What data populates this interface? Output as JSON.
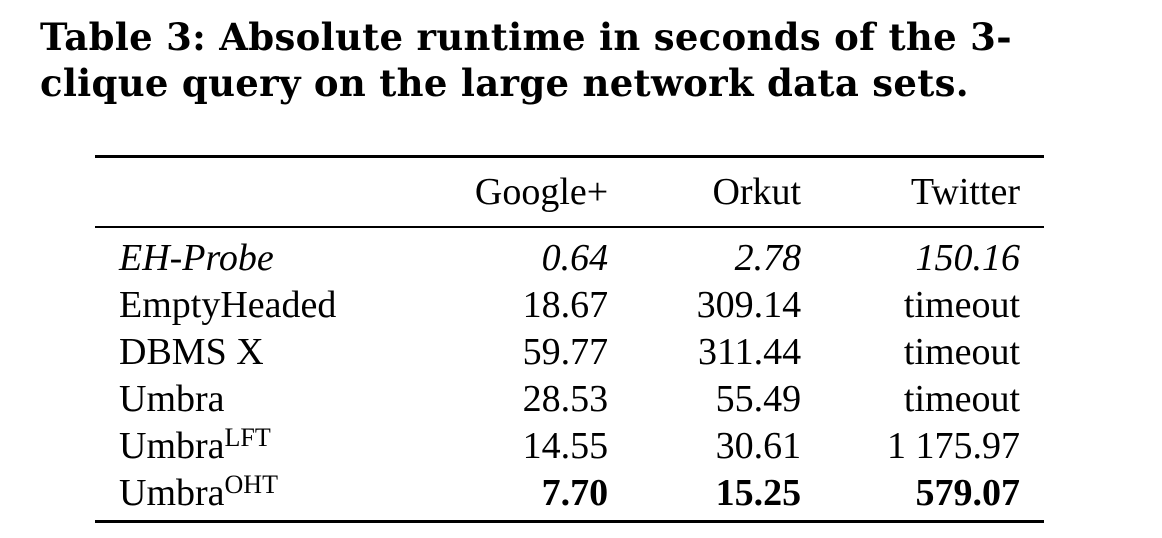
{
  "caption": "Table 3: Absolute runtime in seconds of the 3-clique query on the large network data sets.",
  "table": {
    "columns": [
      "",
      "Google+",
      "Orkut",
      "Twitter"
    ],
    "rows": [
      {
        "system": "EH-Probe",
        "sup": "",
        "google": "0.64",
        "orkut": "2.78",
        "twitter": "150.16",
        "style": "italic"
      },
      {
        "system": "EmptyHeaded",
        "sup": "",
        "google": "18.67",
        "orkut": "309.14",
        "twitter": "timeout",
        "style": "normal"
      },
      {
        "system": "DBMS X",
        "sup": "",
        "google": "59.77",
        "orkut": "311.44",
        "twitter": "timeout",
        "style": "normal"
      },
      {
        "system": "Umbra",
        "sup": "",
        "google": "28.53",
        "orkut": "55.49",
        "twitter": "timeout",
        "style": "normal"
      },
      {
        "system": "Umbra",
        "sup": "LFT",
        "google": "14.55",
        "orkut": "30.61",
        "twitter": "1 175.97",
        "style": "normal"
      },
      {
        "system": "Umbra",
        "sup": "OHT",
        "google": "7.70",
        "orkut": "15.25",
        "twitter": "579.07",
        "style": "bold"
      }
    ]
  }
}
